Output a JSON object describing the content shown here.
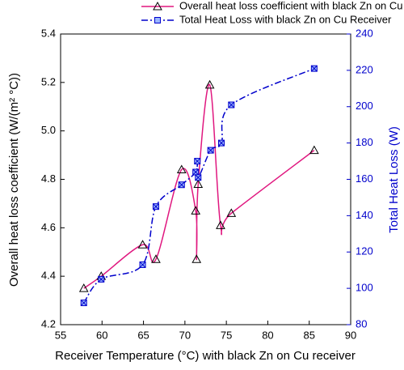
{
  "chart_data": {
    "type": "line",
    "xlabel": "Receiver Temperature (°C) with black Zn on Cu receiver",
    "ylabel": "Overall heat loss coefficient (W/(m² °C))",
    "y2label": "Total Heat Loss (W)",
    "xlim": [
      55,
      90
    ],
    "xticks": [
      55,
      60,
      65,
      70,
      75,
      80,
      85,
      90
    ],
    "ylim": [
      4.2,
      5.4
    ],
    "yticks": [
      4.2,
      4.4,
      4.6,
      4.8,
      {
        "value": 5,
        "label": "5.0"
      },
      5.2,
      5.4
    ],
    "y2lim": [
      80,
      240
    ],
    "y2ticks": [
      80,
      100,
      120,
      140,
      160,
      180,
      200,
      220,
      240
    ],
    "series": [
      {
        "name": "Overall heat loss coefficient with black Zn on Cu Receiver",
        "color": "#e0177f",
        "x": [
          57.8,
          59.9,
          64.9,
          66.5,
          69.6,
          71.3,
          71.4,
          71.6,
          73.0,
          74.3,
          75.6,
          85.6
        ],
        "values": [
          4.35,
          4.4,
          4.53,
          4.47,
          4.84,
          4.67,
          4.47,
          4.78,
          5.19,
          4.61,
          4.66,
          4.92
        ]
      },
      {
        "name": "Total Heat Loss with black Zn on Cu Receiver",
        "color": "#0000cc",
        "axis": "y2",
        "x": [
          57.8,
          59.9,
          64.9,
          66.5,
          69.6,
          71.3,
          71.5,
          71.6,
          73.1,
          74.4,
          75.6,
          85.6
        ],
        "values": [
          92,
          105,
          113,
          145,
          157,
          164,
          170,
          161,
          176,
          180,
          201,
          221
        ]
      }
    ]
  }
}
